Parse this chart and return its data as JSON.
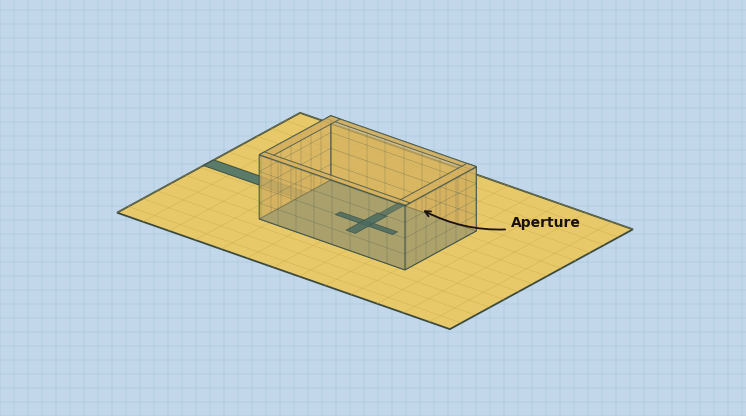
{
  "bg_color": "#c2d8ea",
  "grid_color": "#9bbdd4",
  "ground_plane_color": "#e8c96a",
  "ground_plane_edge_color": "#3a4a40",
  "cavity_floor_color": "#6a8a80",
  "cavity_floor_color2": "#5a7a70",
  "wall_sandy_color": "#d4b060",
  "wall_sandy_alpha": 0.7,
  "wall_teal_color": "#7a9a90",
  "wall_teal_alpha": 0.6,
  "wall_edge_color": "#3a5048",
  "slot_color": "#5a7a6a",
  "cross_color": "#4a6a60",
  "annotation_text": "Aperture",
  "annotation_color": "#1a1010",
  "figsize": [
    7.46,
    4.16
  ],
  "dpi": 100
}
